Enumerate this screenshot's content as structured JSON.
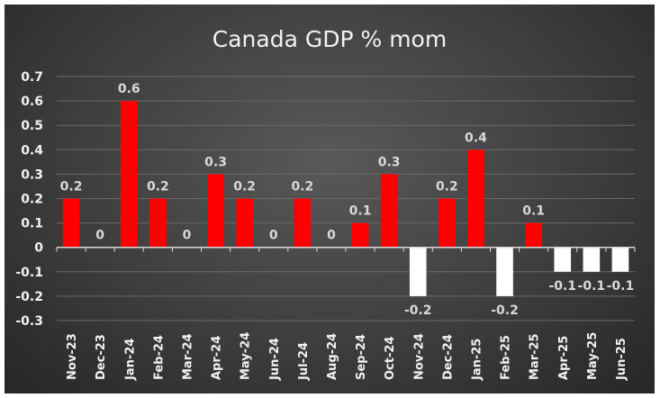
{
  "chart_data": {
    "type": "bar",
    "title": "Canada GDP % mom",
    "xlabel": "",
    "ylabel": "",
    "ylim": [
      -0.3,
      0.7
    ],
    "yticks": [
      0.7,
      0.6,
      0.5,
      0.4,
      0.3,
      0.2,
      0.1,
      0,
      -0.1,
      -0.2,
      -0.3
    ],
    "ytick_labels": [
      "0.7",
      "0.6",
      "0.5",
      "0.4",
      "0.3",
      "0.2",
      "0.1",
      "0",
      "-0.1",
      "-0.2",
      "-0.3"
    ],
    "grid": true,
    "legend": "none",
    "categories": [
      "Nov-23",
      "Dec-23",
      "Jan-24",
      "Feb-24",
      "Mar-24",
      "Apr-24",
      "May-24",
      "Jun-24",
      "Jul-24",
      "Aug-24",
      "Sep-24",
      "Oct-24",
      "Nov-24",
      "Dec-24",
      "Jan-25",
      "Feb-25",
      "Mar-25",
      "Apr-25",
      "May-25",
      "Jun-25"
    ],
    "values": [
      0.2,
      0,
      0.6,
      0.2,
      0,
      0.3,
      0.2,
      0,
      0.2,
      0,
      0.1,
      0.3,
      -0.2,
      0.2,
      0.4,
      -0.2,
      0.1,
      -0.1,
      -0.1,
      -0.1
    ],
    "data_labels": [
      "0.2",
      "0",
      "0.6",
      "0.2",
      "0",
      "0.3",
      "0.2",
      "0",
      "0.2",
      "0",
      "0.1",
      "0.3",
      "-0.2",
      "0.2",
      "0.4",
      "-0.2",
      "0.1",
      "-0.1",
      "-0.1",
      "-0.1"
    ],
    "colors": {
      "positive": "#ff0000",
      "negative": "#ffffff",
      "background": "#404040",
      "text": "#f2f2f2",
      "grid": "#6a6a6a"
    }
  }
}
